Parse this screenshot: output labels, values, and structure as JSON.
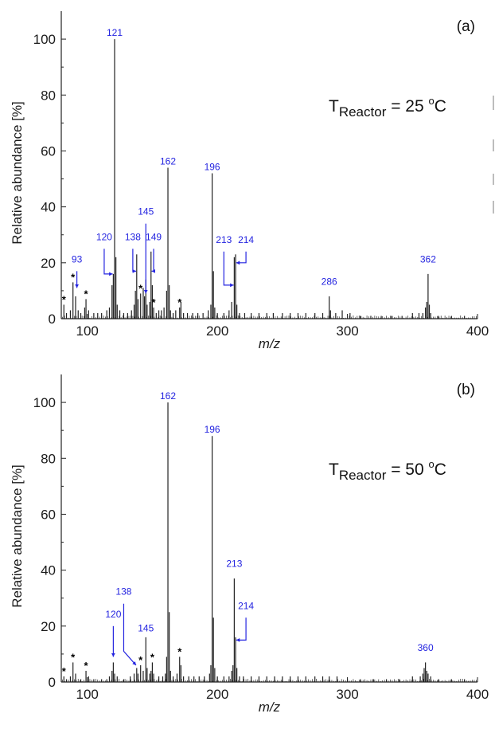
{
  "chart_data": [
    {
      "type": "bar",
      "panel_label": "(a)",
      "condition": {
        "main": "T",
        "subscript": "Reactor",
        "rest": " = 25 ",
        "superscript": "o",
        "unit": "C"
      },
      "xlabel": "m/z",
      "ylabel": "Relative abundance [%]",
      "xlim": [
        80,
        400
      ],
      "ylim": [
        0,
        110
      ],
      "xticks": [
        100,
        200,
        300,
        400
      ],
      "yticks": [
        0,
        20,
        40,
        60,
        80,
        100
      ],
      "peaks": [
        [
          82,
          5
        ],
        [
          84,
          2
        ],
        [
          87,
          3
        ],
        [
          89,
          13
        ],
        [
          91,
          8
        ],
        [
          93,
          3
        ],
        [
          95,
          2
        ],
        [
          98,
          4
        ],
        [
          99,
          7
        ],
        [
          101,
          3
        ],
        [
          105,
          2
        ],
        [
          108,
          2
        ],
        [
          111,
          2
        ],
        [
          115,
          3
        ],
        [
          117,
          4
        ],
        [
          119,
          12
        ],
        [
          120,
          16
        ],
        [
          121,
          100
        ],
        [
          122,
          22
        ],
        [
          123,
          5
        ],
        [
          125,
          3
        ],
        [
          128,
          2
        ],
        [
          131,
          2
        ],
        [
          134,
          3
        ],
        [
          136,
          5
        ],
        [
          137,
          10
        ],
        [
          138,
          23
        ],
        [
          139,
          7
        ],
        [
          141,
          9
        ],
        [
          143,
          11
        ],
        [
          144,
          8
        ],
        [
          145,
          14
        ],
        [
          146,
          5
        ],
        [
          148,
          6
        ],
        [
          149,
          24
        ],
        [
          150,
          12
        ],
        [
          151,
          4
        ],
        [
          153,
          2
        ],
        [
          155,
          3
        ],
        [
          157,
          3
        ],
        [
          159,
          4
        ],
        [
          161,
          10
        ],
        [
          162,
          54
        ],
        [
          163,
          12
        ],
        [
          164,
          3
        ],
        [
          166,
          2
        ],
        [
          168,
          3
        ],
        [
          171,
          4
        ],
        [
          172,
          6
        ],
        [
          174,
          2
        ],
        [
          177,
          2
        ],
        [
          181,
          2
        ],
        [
          185,
          2
        ],
        [
          189,
          2
        ],
        [
          193,
          3
        ],
        [
          195,
          5
        ],
        [
          196,
          52
        ],
        [
          197,
          17
        ],
        [
          198,
          4
        ],
        [
          200,
          2
        ],
        [
          205,
          2
        ],
        [
          209,
          3
        ],
        [
          211,
          6
        ],
        [
          213,
          22
        ],
        [
          214,
          23
        ],
        [
          215,
          5
        ],
        [
          217,
          2
        ],
        [
          221,
          2
        ],
        [
          226,
          2
        ],
        [
          232,
          2
        ],
        [
          238,
          2
        ],
        [
          243,
          2
        ],
        [
          250,
          2
        ],
        [
          256,
          2
        ],
        [
          262,
          2
        ],
        [
          268,
          2
        ],
        [
          275,
          2
        ],
        [
          281,
          2
        ],
        [
          286,
          8
        ],
        [
          287,
          3
        ],
        [
          291,
          2
        ],
        [
          296,
          3
        ],
        [
          302,
          2
        ],
        [
          310,
          1
        ],
        [
          318,
          1
        ],
        [
          326,
          1
        ],
        [
          334,
          1
        ],
        [
          342,
          1
        ],
        [
          350,
          2
        ],
        [
          355,
          2
        ],
        [
          358,
          2
        ],
        [
          360,
          4
        ],
        [
          361,
          6
        ],
        [
          362,
          16
        ],
        [
          363,
          5
        ],
        [
          364,
          2
        ],
        [
          370,
          1
        ],
        [
          380,
          1
        ],
        [
          390,
          1
        ]
      ],
      "labels": [
        {
          "text": "121",
          "x": 121,
          "y": 100
        },
        {
          "text": "162",
          "x": 162,
          "y": 54
        },
        {
          "text": "196",
          "x": 196,
          "y": 52
        },
        {
          "text": "145",
          "x": 145,
          "y": 36
        },
        {
          "text": "120",
          "x": 113,
          "y": 27
        },
        {
          "text": "138",
          "x": 135,
          "y": 27
        },
        {
          "text": "149",
          "x": 151,
          "y": 27
        },
        {
          "text": "213",
          "x": 205,
          "y": 26
        },
        {
          "text": "214",
          "x": 222,
          "y": 26
        },
        {
          "text": "93",
          "x": 92,
          "y": 19
        },
        {
          "text": "286",
          "x": 286,
          "y": 11
        },
        {
          "text": "362",
          "x": 362,
          "y": 19
        }
      ],
      "stars": [
        82,
        89,
        99,
        141,
        151,
        171
      ]
    },
    {
      "type": "bar",
      "panel_label": "(b)",
      "condition": {
        "main": "T",
        "subscript": "Reactor",
        "rest": " = 50 ",
        "superscript": "o",
        "unit": "C"
      },
      "xlabel": "m/z",
      "ylabel": "Relative abundance [%]",
      "xlim": [
        80,
        400
      ],
      "ylim": [
        0,
        110
      ],
      "xticks": [
        100,
        200,
        300,
        400
      ],
      "yticks": [
        0,
        20,
        40,
        60,
        80,
        100
      ],
      "peaks": [
        [
          82,
          2
        ],
        [
          84,
          1
        ],
        [
          87,
          2
        ],
        [
          89,
          7
        ],
        [
          91,
          3
        ],
        [
          95,
          1
        ],
        [
          99,
          4
        ],
        [
          101,
          2
        ],
        [
          105,
          1
        ],
        [
          111,
          1
        ],
        [
          115,
          1
        ],
        [
          117,
          2
        ],
        [
          119,
          4
        ],
        [
          120,
          7
        ],
        [
          121,
          3
        ],
        [
          123,
          2
        ],
        [
          128,
          1
        ],
        [
          133,
          2
        ],
        [
          136,
          3
        ],
        [
          138,
          5
        ],
        [
          139,
          3
        ],
        [
          141,
          6
        ],
        [
          143,
          4
        ],
        [
          145,
          16
        ],
        [
          146,
          5
        ],
        [
          148,
          3
        ],
        [
          149,
          4
        ],
        [
          150,
          7
        ],
        [
          151,
          3
        ],
        [
          155,
          2
        ],
        [
          158,
          2
        ],
        [
          160,
          3
        ],
        [
          161,
          9
        ],
        [
          162,
          100
        ],
        [
          163,
          25
        ],
        [
          164,
          4
        ],
        [
          166,
          2
        ],
        [
          169,
          3
        ],
        [
          171,
          9
        ],
        [
          172,
          6
        ],
        [
          174,
          2
        ],
        [
          178,
          2
        ],
        [
          182,
          2
        ],
        [
          186,
          2
        ],
        [
          190,
          2
        ],
        [
          194,
          3
        ],
        [
          195,
          6
        ],
        [
          196,
          88
        ],
        [
          197,
          23
        ],
        [
          198,
          5
        ],
        [
          200,
          2
        ],
        [
          205,
          2
        ],
        [
          209,
          2
        ],
        [
          211,
          4
        ],
        [
          212,
          6
        ],
        [
          213,
          37
        ],
        [
          214,
          16
        ],
        [
          215,
          5
        ],
        [
          217,
          2
        ],
        [
          220,
          2
        ],
        [
          226,
          2
        ],
        [
          232,
          2
        ],
        [
          238,
          2
        ],
        [
          244,
          2
        ],
        [
          250,
          2
        ],
        [
          256,
          2
        ],
        [
          262,
          2
        ],
        [
          268,
          2
        ],
        [
          275,
          2
        ],
        [
          281,
          2
        ],
        [
          286,
          2
        ],
        [
          292,
          2
        ],
        [
          300,
          1
        ],
        [
          310,
          1
        ],
        [
          320,
          1
        ],
        [
          330,
          1
        ],
        [
          340,
          1
        ],
        [
          350,
          2
        ],
        [
          356,
          2
        ],
        [
          358,
          3
        ],
        [
          359,
          5
        ],
        [
          360,
          7
        ],
        [
          361,
          4
        ],
        [
          362,
          3
        ],
        [
          364,
          2
        ],
        [
          370,
          1
        ],
        [
          380,
          1
        ],
        [
          390,
          1
        ]
      ],
      "labels": [
        {
          "text": "162",
          "x": 162,
          "y": 100
        },
        {
          "text": "196",
          "x": 196,
          "y": 88
        },
        {
          "text": "213",
          "x": 213,
          "y": 40
        },
        {
          "text": "214",
          "x": 222,
          "y": 25
        },
        {
          "text": "138",
          "x": 128,
          "y": 30
        },
        {
          "text": "145",
          "x": 145,
          "y": 17
        },
        {
          "text": "120",
          "x": 120,
          "y": 22
        },
        {
          "text": "360",
          "x": 360,
          "y": 10
        }
      ],
      "stars": [
        82,
        89,
        99,
        141,
        150,
        171
      ]
    }
  ],
  "colors": {
    "label": "#2424e0",
    "spectrum": "#222222",
    "axis": "#222222"
  }
}
